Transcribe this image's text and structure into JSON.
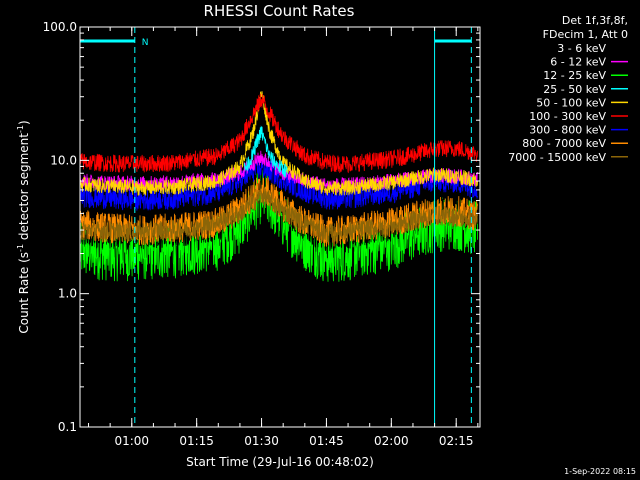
{
  "chart_data": {
    "type": "line",
    "title": "RHESSI Count Rates",
    "xlabel": "Start Time (29-Jul-16 00:48:02)",
    "ylabel_parts": [
      "Count Rate (s",
      "-1",
      " detector segment",
      "-1",
      ")"
    ],
    "yscale": "log",
    "ylim": [
      0.1,
      100.0
    ],
    "xlim_minutes": [
      48.03,
      140.5
    ],
    "x_ticks": [
      {
        "label": "01:00",
        "min": 60
      },
      {
        "label": "01:15",
        "min": 75
      },
      {
        "label": "01:30",
        "min": 90
      },
      {
        "label": "01:45",
        "min": 105
      },
      {
        "label": "02:00",
        "min": 120
      },
      {
        "label": "02:15",
        "min": 135
      }
    ],
    "y_ticks": [
      {
        "label": "0.1",
        "value": 0.1
      },
      {
        "label": "1.0",
        "value": 1.0
      },
      {
        "label": "10.0",
        "value": 10.0
      },
      {
        "label": "100.0",
        "value": 100.0
      }
    ],
    "legend_header": [
      "Det 1f,3f,8f,",
      "FDecim 1, Att 0"
    ],
    "legend": [
      {
        "name": "3 - 6 keV",
        "color": "#000000"
      },
      {
        "name": "6 - 12 keV",
        "color": "#ff00ff"
      },
      {
        "name": "12 - 25 keV",
        "color": "#00ff00"
      },
      {
        "name": "25 - 50 keV",
        "color": "#00ffff"
      },
      {
        "name": "50 - 100 keV",
        "color": "#ffd700"
      },
      {
        "name": "100 - 300 keV",
        "color": "#ff0000"
      },
      {
        "name": "300 - 800 keV",
        "color": "#0000ff"
      },
      {
        "name": "800 - 7000 keV",
        "color": "#ff8c00"
      },
      {
        "name": "7000 - 15000 keV",
        "color": "#8b6508"
      }
    ],
    "series": [
      {
        "legend_index": 2,
        "color": "#00ff00",
        "x": [
          48,
          55,
          62,
          70,
          80,
          85,
          88,
          90,
          92,
          95,
          100,
          105,
          110,
          115,
          120,
          125,
          130,
          135,
          140
        ],
        "y": [
          2.1,
          2.0,
          2.0,
          2.1,
          2.4,
          3.2,
          4.5,
          5.5,
          4.8,
          3.5,
          2.4,
          1.9,
          2.0,
          2.2,
          2.4,
          2.8,
          3.3,
          3.4,
          3.0
        ],
        "noise": 0.22
      },
      {
        "legend_index": 0,
        "color": "#000000",
        "x": [
          48,
          55,
          62,
          70,
          80,
          85,
          88,
          90,
          92,
          95,
          100,
          105,
          110,
          115,
          120,
          125,
          130,
          135,
          140
        ],
        "y": [
          2.9,
          2.8,
          2.8,
          2.9,
          3.2,
          4.2,
          5.8,
          6.8,
          6.0,
          4.5,
          3.2,
          2.7,
          2.8,
          3.0,
          3.2,
          3.7,
          4.2,
          4.3,
          3.9
        ],
        "noise": 0.12
      },
      {
        "legend_index": 7,
        "color": "#ff8c00",
        "x": [
          48,
          55,
          62,
          70,
          80,
          85,
          88,
          90,
          92,
          95,
          100,
          105,
          110,
          115,
          120,
          125,
          130,
          135,
          140
        ],
        "y": [
          3.3,
          3.1,
          3.0,
          3.1,
          3.4,
          4.3,
          5.5,
          6.2,
          5.6,
          4.5,
          3.4,
          2.9,
          3.0,
          3.2,
          3.4,
          3.8,
          4.2,
          4.2,
          3.8
        ],
        "noise": 0.12
      },
      {
        "legend_index": 8,
        "color": "#8b6508",
        "x": [
          48,
          60,
          75,
          85,
          90,
          95,
          105,
          120,
          130,
          140
        ],
        "y": [
          3.0,
          2.9,
          3.1,
          4.0,
          5.5,
          4.2,
          2.8,
          3.2,
          3.9,
          3.6
        ],
        "noise": 0.08
      },
      {
        "legend_index": 6,
        "color": "#0000ff",
        "x": [
          48,
          55,
          62,
          70,
          80,
          85,
          88,
          90,
          92,
          95,
          100,
          105,
          110,
          115,
          120,
          125,
          130,
          135,
          140
        ],
        "y": [
          5.4,
          5.2,
          5.1,
          5.2,
          5.8,
          7.0,
          8.3,
          8.8,
          8.3,
          7.2,
          5.9,
          5.2,
          5.2,
          5.5,
          5.8,
          6.3,
          7.0,
          6.9,
          6.2
        ],
        "noise": 0.09
      },
      {
        "legend_index": 1,
        "color": "#ff00ff",
        "x": [
          48,
          55,
          62,
          70,
          80,
          85,
          88,
          90,
          92,
          95,
          100,
          105,
          110,
          115,
          120,
          125,
          130,
          135,
          140
        ],
        "y": [
          7.0,
          6.8,
          6.7,
          6.8,
          7.2,
          8.0,
          9.5,
          10.5,
          9.5,
          8.0,
          7.0,
          6.5,
          6.5,
          6.7,
          7.0,
          7.3,
          7.7,
          7.6,
          7.2
        ],
        "noise": 0.06
      },
      {
        "legend_index": 4,
        "color": "#ffd700",
        "x": [
          48,
          55,
          62,
          70,
          80,
          85,
          88,
          90,
          92,
          95,
          100,
          105,
          110,
          115,
          120,
          125,
          130,
          135,
          140
        ],
        "y": [
          6.6,
          6.4,
          6.2,
          6.3,
          7.0,
          9.0,
          16.0,
          32.0,
          16.0,
          9.5,
          7.0,
          6.2,
          6.2,
          6.5,
          6.8,
          7.3,
          7.8,
          7.6,
          7.1
        ],
        "noise": 0.06
      },
      {
        "legend_index": 3,
        "color": "#00ffff",
        "x": [
          86,
          88,
          89,
          90,
          91,
          92,
          94,
          96
        ],
        "y": [
          8.5,
          11.0,
          14.0,
          16.5,
          13.0,
          10.5,
          9.0,
          8.2
        ],
        "noise": 0.06
      },
      {
        "legend_index": 5,
        "color": "#ff0000",
        "x": [
          48,
          55,
          62,
          70,
          80,
          85,
          88,
          90,
          92,
          95,
          100,
          105,
          110,
          115,
          120,
          125,
          130,
          135,
          140
        ],
        "y": [
          9.8,
          9.5,
          9.4,
          9.6,
          10.8,
          14.0,
          22.0,
          29.0,
          22.0,
          15.0,
          10.8,
          9.6,
          9.4,
          9.8,
          10.2,
          11.0,
          12.2,
          12.3,
          11.2
        ],
        "noise": 0.07
      }
    ],
    "attenuator_markers": [
      {
        "start_min": 48.03,
        "end_min": 60.7,
        "label": "N"
      },
      {
        "start_min": 130.0,
        "end_min": 138.5,
        "label": ""
      }
    ],
    "marker_color": "#00ffff"
  },
  "footer": {
    "timestamp": "1-Sep-2022 08:15"
  }
}
